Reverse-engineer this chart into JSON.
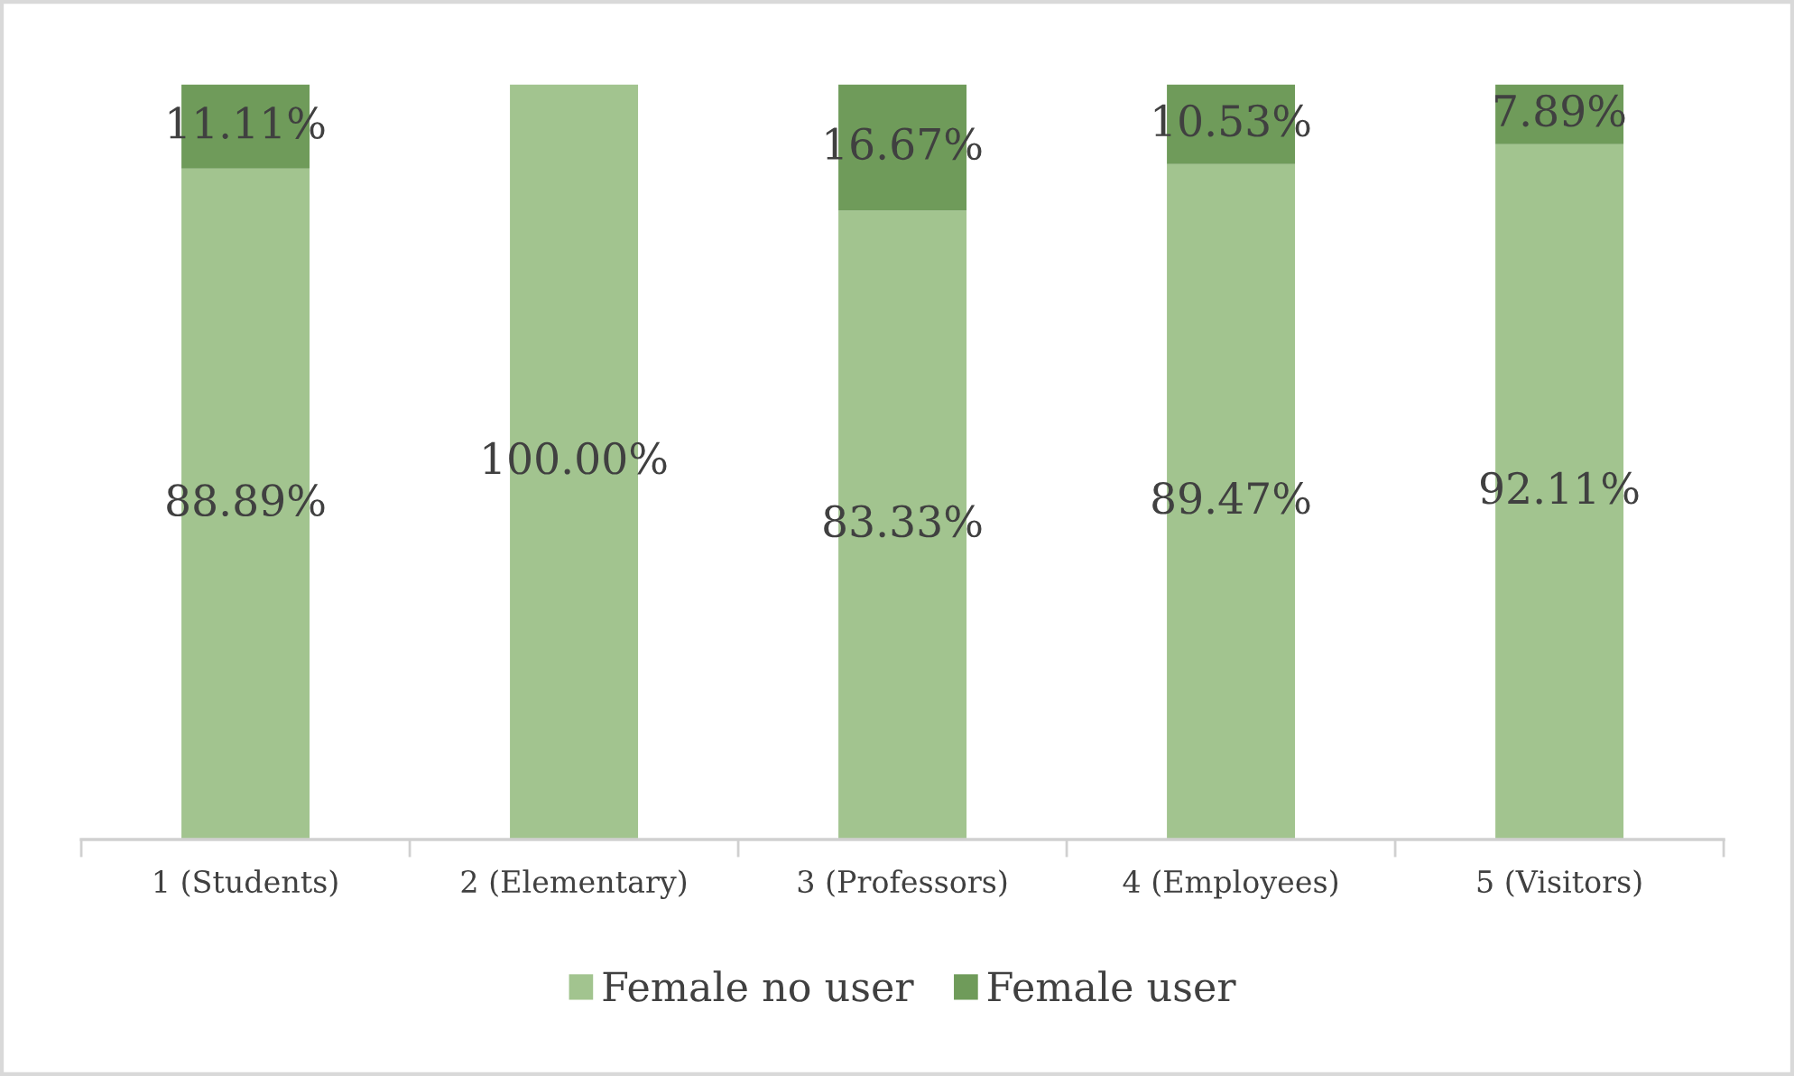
{
  "chart_data": {
    "type": "bar",
    "stacked": true,
    "tick_labels": "x",
    "legend": "bottom",
    "categories": [
      "1 (Students)",
      "2 (Elementary)",
      "3 (Professors)",
      "4 (Employees)",
      "5 (Visitors)"
    ],
    "series": [
      {
        "name": "Female no user",
        "color": "#a2c48f",
        "values": [
          88.89,
          100.0,
          83.33,
          89.47,
          92.11
        ],
        "value_labels": [
          "88.89%",
          "100.00%",
          "83.33%",
          "89.47%",
          "92.11%"
        ]
      },
      {
        "name": "Female user",
        "color": "#6f9b5a",
        "values": [
          11.11,
          null,
          16.67,
          10.53,
          7.89
        ],
        "value_labels": [
          "11.11%",
          null,
          "16.67%",
          "10.53%",
          "7.89%"
        ]
      }
    ]
  }
}
